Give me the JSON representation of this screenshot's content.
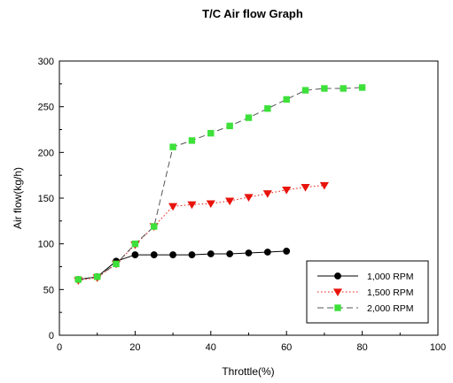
{
  "chart_data": {
    "type": "line",
    "title": "T/C Air flow Graph",
    "xlabel": "Throttle(%)",
    "ylabel": "Air flow(kg/h)",
    "xlim": [
      0,
      100
    ],
    "ylim": [
      0,
      300
    ],
    "xticks": [
      0,
      20,
      40,
      60,
      80,
      100
    ],
    "yticks": [
      0,
      50,
      100,
      150,
      200,
      250,
      300
    ],
    "grid": false,
    "legend_position": "bottom-right",
    "series": [
      {
        "name": "1,000 RPM",
        "color": "#000000",
        "marker": "circle",
        "line_style": "solid",
        "x": [
          5,
          10,
          15,
          20,
          25,
          30,
          35,
          40,
          45,
          50,
          55,
          60
        ],
        "y": [
          61,
          64,
          81,
          88,
          88,
          88,
          88,
          89,
          89,
          90,
          91,
          92
        ]
      },
      {
        "name": "1,500 RPM",
        "color": "#e8140c",
        "marker": "triangle-down",
        "line_style": "dotted",
        "x": [
          5,
          10,
          15,
          20,
          25,
          30,
          35,
          40,
          45,
          50,
          55,
          60,
          65,
          70
        ],
        "y": [
          60,
          63,
          78,
          99,
          119,
          141,
          143,
          144,
          147,
          151,
          155,
          159,
          162,
          164
        ]
      },
      {
        "name": "2,000 RPM",
        "color": "#3de13a",
        "marker": "square",
        "line_style": "dashed",
        "x": [
          5,
          10,
          15,
          20,
          25,
          30,
          35,
          40,
          45,
          50,
          55,
          60,
          65,
          70,
          75,
          80
        ],
        "y": [
          61,
          64,
          78,
          100,
          119,
          206,
          213,
          221,
          229,
          238,
          248,
          258,
          268,
          270,
          270,
          271
        ]
      }
    ]
  }
}
